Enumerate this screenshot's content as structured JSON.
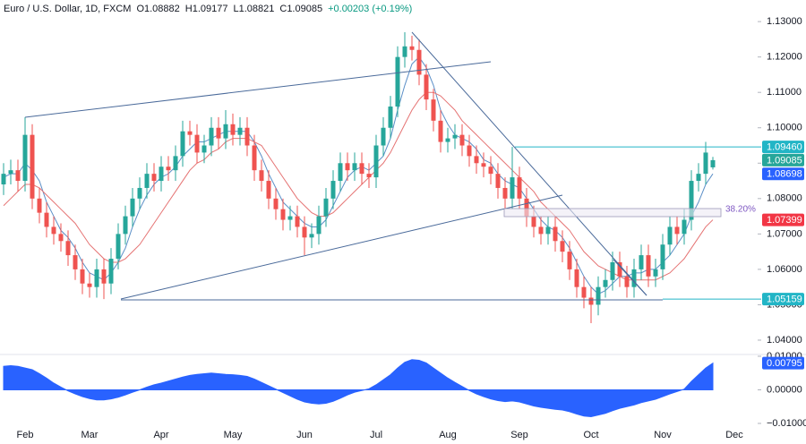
{
  "chart_data": {
    "type": "candlestick",
    "title": "Euro / U.S. Dollar, 1D, FXCM",
    "ohlc_labels": [
      "O1.08882",
      "H1.09177",
      "L1.08821",
      "C1.09085"
    ],
    "change_label": "+0.00203 (+0.19%)",
    "up_color": "#26a69a",
    "down_color": "#ef5350",
    "categories": [
      null,
      null,
      null,
      "Feb",
      null,
      null,
      null,
      null,
      null,
      null,
      null,
      null,
      "Mar",
      null,
      null,
      null,
      null,
      null,
      null,
      null,
      null,
      null,
      "Apr",
      null,
      null,
      null,
      null,
      null,
      null,
      null,
      null,
      null,
      "May",
      null,
      null,
      null,
      null,
      null,
      null,
      null,
      null,
      null,
      "Jun",
      null,
      null,
      null,
      null,
      null,
      null,
      null,
      null,
      null,
      "Jul",
      null,
      null,
      null,
      null,
      null,
      null,
      null,
      null,
      null,
      "Aug",
      null,
      null,
      null,
      null,
      null,
      null,
      null,
      null,
      null,
      "Sep",
      null,
      null,
      null,
      null,
      null,
      null,
      null,
      null,
      null,
      "Oct",
      null,
      null,
      null,
      null,
      null,
      null,
      null,
      null,
      null,
      "Nov",
      null,
      null,
      null,
      null,
      null,
      null,
      null,
      null,
      null,
      "Dec"
    ],
    "open": [
      1.084,
      1.087,
      1.088,
      1.085,
      1.098,
      1.08,
      1.076,
      1.072,
      1.07,
      1.068,
      1.064,
      1.06,
      1.056,
      1.055,
      1.06,
      1.056,
      1.063,
      1.07,
      1.075,
      1.08,
      1.083,
      1.087,
      1.085,
      1.089,
      1.088,
      1.092,
      1.099,
      1.098,
      1.093,
      1.095,
      1.1,
      1.097,
      1.101,
      1.098,
      1.1,
      1.095,
      1.088,
      1.085,
      1.08,
      1.077,
      1.074,
      1.075,
      1.072,
      1.069,
      1.07,
      1.075,
      1.08,
      1.085,
      1.09,
      1.088,
      1.09,
      1.087,
      1.086,
      1.095,
      1.1,
      1.106,
      1.12,
      1.123,
      1.122,
      1.115,
      1.108,
      1.102,
      1.096,
      1.097,
      1.098,
      1.095,
      1.092,
      1.09,
      1.089,
      1.087,
      1.083,
      1.08,
      1.086,
      1.08,
      1.075,
      1.072,
      1.07,
      1.072,
      1.068,
      1.065,
      1.06,
      1.055,
      1.052,
      1.05,
      1.055,
      1.057,
      1.062,
      1.058,
      1.055,
      1.06,
      1.064,
      1.058,
      1.06,
      1.067,
      1.072,
      1.07,
      1.074,
      1.085,
      1.087,
      1.08882,
      null,
      null,
      null
    ],
    "high": [
      1.09,
      1.091,
      1.091,
      1.103,
      1.101,
      1.083,
      1.079,
      1.075,
      1.073,
      1.071,
      1.067,
      1.063,
      1.059,
      1.063,
      1.063,
      1.066,
      1.073,
      1.078,
      1.083,
      1.086,
      1.09,
      1.09,
      1.092,
      1.092,
      1.095,
      1.102,
      1.102,
      1.101,
      1.098,
      1.103,
      1.103,
      1.105,
      1.104,
      1.103,
      1.103,
      1.098,
      1.091,
      1.088,
      1.083,
      1.08,
      1.078,
      1.078,
      1.075,
      1.073,
      1.078,
      1.083,
      1.088,
      1.093,
      1.093,
      1.093,
      1.093,
      1.09,
      1.098,
      1.103,
      1.109,
      1.123,
      1.127,
      1.126,
      1.125,
      1.118,
      1.111,
      1.105,
      1.1,
      1.101,
      1.101,
      1.098,
      1.095,
      1.093,
      1.092,
      1.09,
      1.086,
      1.0946,
      1.089,
      1.083,
      1.078,
      1.075,
      1.075,
      1.075,
      1.071,
      1.068,
      1.063,
      1.058,
      1.055,
      1.058,
      1.06,
      1.065,
      1.065,
      1.061,
      1.063,
      1.067,
      1.067,
      1.063,
      1.07,
      1.075,
      1.075,
      1.077,
      1.088,
      1.09,
      1.096,
      1.09177,
      null,
      null,
      null
    ],
    "low": [
      1.081,
      1.084,
      1.082,
      1.082,
      1.077,
      1.073,
      1.069,
      1.067,
      1.065,
      1.061,
      1.057,
      1.053,
      1.052,
      1.052,
      1.0516,
      1.053,
      1.06,
      1.067,
      1.072,
      1.077,
      1.08,
      1.082,
      1.082,
      1.085,
      1.085,
      1.089,
      1.095,
      1.09,
      1.09,
      1.092,
      1.094,
      1.094,
      1.095,
      1.095,
      1.092,
      1.085,
      1.082,
      1.077,
      1.074,
      1.071,
      1.071,
      1.069,
      1.064,
      1.066,
      1.067,
      1.072,
      1.077,
      1.082,
      1.085,
      1.085,
      1.084,
      1.083,
      1.083,
      1.092,
      1.097,
      1.103,
      1.117,
      1.119,
      1.112,
      1.105,
      1.099,
      1.093,
      1.093,
      1.094,
      1.092,
      1.089,
      1.087,
      1.086,
      1.084,
      1.08,
      1.077,
      1.077,
      1.077,
      1.072,
      1.069,
      1.067,
      1.067,
      1.065,
      1.062,
      1.057,
      1.052,
      1.049,
      1.0448,
      1.047,
      1.052,
      1.054,
      1.055,
      1.052,
      1.052,
      1.057,
      1.055,
      1.055,
      1.057,
      1.064,
      1.067,
      1.067,
      1.071,
      1.082,
      1.084,
      1.08821,
      null,
      null,
      null
    ],
    "close": [
      1.087,
      1.088,
      1.085,
      1.098,
      1.08,
      1.076,
      1.072,
      1.07,
      1.068,
      1.064,
      1.06,
      1.056,
      1.055,
      1.06,
      1.056,
      1.063,
      1.07,
      1.075,
      1.08,
      1.083,
      1.087,
      1.085,
      1.089,
      1.088,
      1.092,
      1.099,
      1.098,
      1.093,
      1.095,
      1.1,
      1.097,
      1.101,
      1.098,
      1.1,
      1.095,
      1.088,
      1.085,
      1.08,
      1.077,
      1.074,
      1.075,
      1.072,
      1.069,
      1.07,
      1.075,
      1.08,
      1.085,
      1.09,
      1.088,
      1.09,
      1.087,
      1.086,
      1.095,
      1.1,
      1.106,
      1.12,
      1.123,
      1.122,
      1.115,
      1.108,
      1.102,
      1.096,
      1.097,
      1.098,
      1.095,
      1.092,
      1.09,
      1.089,
      1.087,
      1.083,
      1.08,
      1.086,
      1.08,
      1.075,
      1.072,
      1.07,
      1.072,
      1.068,
      1.065,
      1.06,
      1.055,
      1.052,
      1.05,
      1.055,
      1.057,
      1.062,
      1.058,
      1.055,
      1.06,
      1.064,
      1.058,
      1.06,
      1.067,
      1.072,
      1.07,
      1.074,
      1.085,
      1.087,
      1.093,
      1.09085,
      null,
      null,
      null
    ],
    "lines": [
      {
        "color": "#5b8fc7",
        "values": [
          1.086,
          1.087,
          1.087,
          1.09,
          1.088,
          1.085,
          1.079,
          1.075,
          1.071,
          1.069,
          1.066,
          1.062,
          1.059,
          1.058,
          1.057,
          1.059,
          1.062,
          1.066,
          1.072,
          1.077,
          1.081,
          1.084,
          1.086,
          1.087,
          1.089,
          1.092,
          1.094,
          1.096,
          1.096,
          1.097,
          1.098,
          1.099,
          1.099,
          1.099,
          1.099,
          1.096,
          1.092,
          1.087,
          1.083,
          1.079,
          1.077,
          1.075,
          1.073,
          1.072,
          1.072,
          1.074,
          1.078,
          1.082,
          1.086,
          1.088,
          1.089,
          1.088,
          1.09,
          1.092,
          1.097,
          1.105,
          1.112,
          1.118,
          1.12,
          1.117,
          1.112,
          1.105,
          1.101,
          1.098,
          1.097,
          1.096,
          1.094,
          1.091,
          1.09,
          1.087,
          1.085,
          1.084,
          1.083,
          1.08,
          1.077,
          1.074,
          1.072,
          1.071,
          1.069,
          1.066,
          1.062,
          1.058,
          1.055,
          1.053,
          1.054,
          1.056,
          1.058,
          1.058,
          1.059,
          1.059,
          1.06,
          1.06,
          1.062,
          1.064,
          1.067,
          1.07,
          1.075,
          1.079,
          1.084,
          1.08698,
          null,
          null,
          null
        ]
      },
      {
        "color": "#e57373",
        "values": [
          1.078,
          1.08,
          1.082,
          1.084,
          1.084,
          1.083,
          1.081,
          1.079,
          1.077,
          1.075,
          1.073,
          1.07,
          1.067,
          1.065,
          1.063,
          1.062,
          1.062,
          1.063,
          1.065,
          1.067,
          1.07,
          1.073,
          1.076,
          1.079,
          1.082,
          1.085,
          1.088,
          1.09,
          1.091,
          1.093,
          1.094,
          1.096,
          1.097,
          1.097,
          1.097,
          1.096,
          1.095,
          1.092,
          1.089,
          1.086,
          1.083,
          1.08,
          1.078,
          1.076,
          1.075,
          1.075,
          1.076,
          1.078,
          1.08,
          1.082,
          1.084,
          1.086,
          1.088,
          1.09,
          1.093,
          1.097,
          1.101,
          1.105,
          1.108,
          1.11,
          1.11,
          1.109,
          1.107,
          1.105,
          1.102,
          1.1,
          1.098,
          1.096,
          1.094,
          1.092,
          1.09,
          1.088,
          1.086,
          1.084,
          1.082,
          1.079,
          1.077,
          1.075,
          1.073,
          1.071,
          1.068,
          1.065,
          1.063,
          1.061,
          1.06,
          1.059,
          1.058,
          1.057,
          1.057,
          1.057,
          1.057,
          1.057,
          1.058,
          1.059,
          1.061,
          1.063,
          1.066,
          1.069,
          1.072,
          1.07399,
          null,
          null,
          null
        ]
      }
    ],
    "ylim": [
      1.0362,
      1.1361
    ],
    "yticks": [
      {
        "value": 1.04,
        "label": "1.04000"
      },
      {
        "value": 1.05,
        "label": "1.05000"
      },
      {
        "value": 1.06,
        "label": "1.06000"
      },
      {
        "value": 1.07,
        "label": "1.07000"
      },
      {
        "value": 1.08,
        "label": "1.08000"
      },
      {
        "value": 1.09,
        "label": "1.09000"
      },
      {
        "value": 1.1,
        "label": "1.10000"
      },
      {
        "value": 1.11,
        "label": "1.11000"
      },
      {
        "value": 1.12,
        "label": "1.12000"
      },
      {
        "value": 1.13,
        "label": "1.13000"
      }
    ],
    "price_labels": [
      {
        "value": 1.0946,
        "label": "1.09460",
        "color": "#22b5c6"
      },
      {
        "value": 1.09085,
        "label": "1.09085",
        "color": "#26a69a"
      },
      {
        "value": 1.08698,
        "label": "1.08698",
        "color": "#2962ff"
      },
      {
        "value": 1.07399,
        "label": "1.07399",
        "color": "#f23645"
      },
      {
        "value": 1.05159,
        "label": "1.05159",
        "color": "#22b5c6"
      }
    ],
    "fib_label": "38.20%",
    "indicator": {
      "type": "area",
      "color": "#2962ff",
      "values": [
        0.007,
        0.0072,
        0.007,
        0.0065,
        0.006,
        0.0048,
        0.0035,
        0.002,
        0.0008,
        -0.0003,
        -0.0012,
        -0.002,
        -0.0026,
        -0.003,
        -0.003,
        -0.0027,
        -0.0022,
        -0.0015,
        -0.0007,
        0,
        0.0008,
        0.0015,
        0.002,
        0.0026,
        0.0032,
        0.0038,
        0.0043,
        0.0046,
        0.0048,
        0.005,
        0.0048,
        0.0046,
        0.0045,
        0.0043,
        0.004,
        0.0032,
        0.0022,
        0.0012,
        0.0002,
        -0.0008,
        -0.0018,
        -0.0028,
        -0.0036,
        -0.004,
        -0.0042,
        -0.004,
        -0.0034,
        -0.0025,
        -0.0015,
        -0.0007,
        -0.0002,
        0.0003,
        0.0015,
        0.003,
        0.0045,
        0.0065,
        0.0082,
        0.009,
        0.0088,
        0.008,
        0.0065,
        0.005,
        0.0035,
        0.0022,
        0.001,
        -0.0002,
        -0.0012,
        -0.002,
        -0.0027,
        -0.0032,
        -0.0035,
        -0.0033,
        -0.0036,
        -0.0042,
        -0.0048,
        -0.0052,
        -0.0055,
        -0.0058,
        -0.006,
        -0.0065,
        -0.0072,
        -0.0078,
        -0.008,
        -0.0075,
        -0.007,
        -0.0062,
        -0.0055,
        -0.005,
        -0.0045,
        -0.0038,
        -0.0033,
        -0.0028,
        -0.002,
        -0.0012,
        -0.0005,
        0.0002,
        0.0025,
        0.0045,
        0.0065,
        0.00795,
        null,
        null,
        null
      ],
      "last_label": "0.00795",
      "ylim": [
        -0.01027,
        0.01053
      ],
      "yticks": [
        {
          "value": 0.01,
          "label": "0.01000"
        },
        {
          "value": 0,
          "label": "0.00000"
        },
        {
          "value": -0.01,
          "label": "−0.01000"
        }
      ]
    }
  }
}
